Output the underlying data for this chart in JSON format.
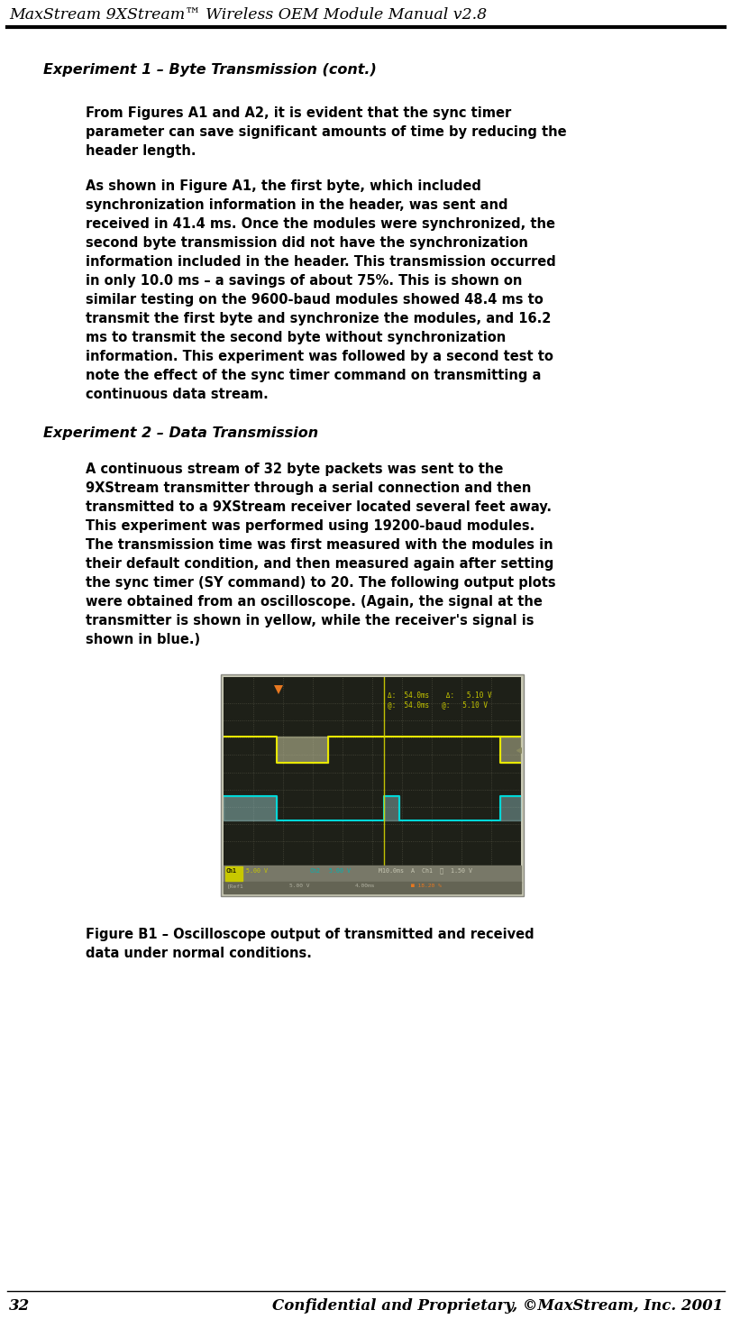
{
  "page_title": "MaxStream 9XStream™ Wireless OEM Module Manual v2.8",
  "page_number": "32",
  "footer_right": "Confidential and Proprietary, ©MaxStream, Inc. 2001",
  "section1_heading": "Experiment 1 – Byte Transmission (cont.)",
  "section1_para1_lines": [
    "From Figures A1 and A2, it is evident that the sync timer",
    "parameter can save significant amounts of time by reducing the",
    "header length."
  ],
  "section1_para2_lines": [
    "As shown in Figure A1, the first byte, which included",
    "synchronization information in the header, was sent and",
    "received in 41.4 ms. Once the modules were synchronized, the",
    "second byte transmission did not have the synchronization",
    "information included in the header. This transmission occurred",
    "in only 10.0 ms – a savings of about 75%. This is shown on",
    "similar testing on the 9600-baud modules showed 48.4 ms to",
    "transmit the first byte and synchronize the modules, and 16.2",
    "ms to transmit the second byte without synchronization",
    "information. This experiment was followed by a second test to",
    "note the effect of the sync timer command on transmitting a",
    "continuous data stream."
  ],
  "section2_heading": "Experiment 2 – Data Transmission",
  "section2_para1_lines": [
    "A continuous stream of 32 byte packets was sent to the",
    "9XStream transmitter through a serial connection and then",
    "transmitted to a 9XStream receiver located several feet away.",
    "This experiment was performed using 19200-baud modules.",
    "The transmission time was first measured with the modules in",
    "their default condition, and then measured again after setting",
    "the sync timer (SY command) to 20. The following output plots",
    "were obtained from an oscilloscope. (Again, the signal at the",
    "transmitter is shown in yellow, while the receiver's signal is",
    "shown in blue.)"
  ],
  "figure_caption_lines": [
    "Figure B1 – Oscilloscope output of transmitted and received",
    "data under normal conditions."
  ],
  "background_color": "#ffffff",
  "text_color": "#000000",
  "osc_bg_color": "#c8c8b4",
  "osc_plot_bg": "#1e2018",
  "osc_grid_color": "#5a5a4a",
  "osc_yellow": "#e8e800",
  "osc_yellow_fill": "#d4d4a0",
  "osc_cyan": "#00d8d8",
  "osc_cyan_fill": "#a0d8d8",
  "osc_cursor_color": "#d4d400",
  "osc_trigger_color": "#e87820",
  "osc_text_yellow": "#c8c800",
  "osc_text_cyan": "#00b4b4",
  "osc_text_white": "#d0d0c0",
  "osc_ch1_box": "#c8c800",
  "osc_footer_bg": "#8a8a78"
}
